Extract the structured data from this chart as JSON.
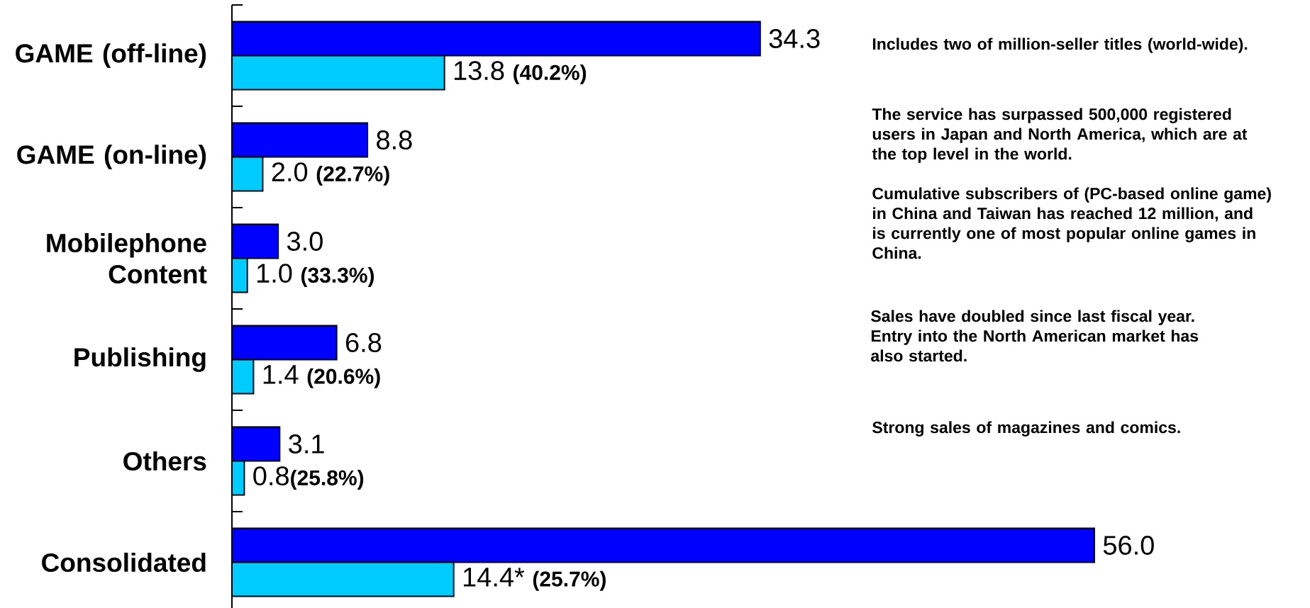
{
  "chart_data": {
    "type": "bar",
    "orientation": "horizontal",
    "categories": [
      "GAME (off-line)",
      "GAME (on-line)",
      "Mobilephone Content",
      "Publishing",
      "Others",
      "Consolidated"
    ],
    "series": [
      {
        "color": "#0000ff",
        "values": [
          34.3,
          8.8,
          3.0,
          6.8,
          3.1,
          56.0
        ],
        "value_labels": [
          "34.3",
          "8.8",
          "3.0",
          "6.8",
          "3.1",
          "56.0"
        ]
      },
      {
        "color": "#00ccff",
        "values": [
          13.8,
          2.0,
          1.0,
          1.4,
          0.8,
          14.4
        ],
        "value_labels": [
          "13.8 **(40.2%)**",
          "2.0 **(22.7%)**",
          "1.0 **(33.3%)**",
          "1.4 **(20.6%)**",
          "0.8**(25.8%)**",
          "14.4* **(25.7%)**"
        ]
      }
    ],
    "annotations": [
      "Includes two of million-seller titles (world-wide).",
      "The service has surpassed 500,000 registered users in Japan and North America, which are at the top level in the world.",
      "Cumulative subscribers of (PC-based online game) in China and Taiwan has reached 12 million, and is currently one of most popular online games in China.",
      "Sales have doubled since last fiscal year. Entry into the North American market has also started.",
      "Strong sales of magazines and comics."
    ]
  }
}
